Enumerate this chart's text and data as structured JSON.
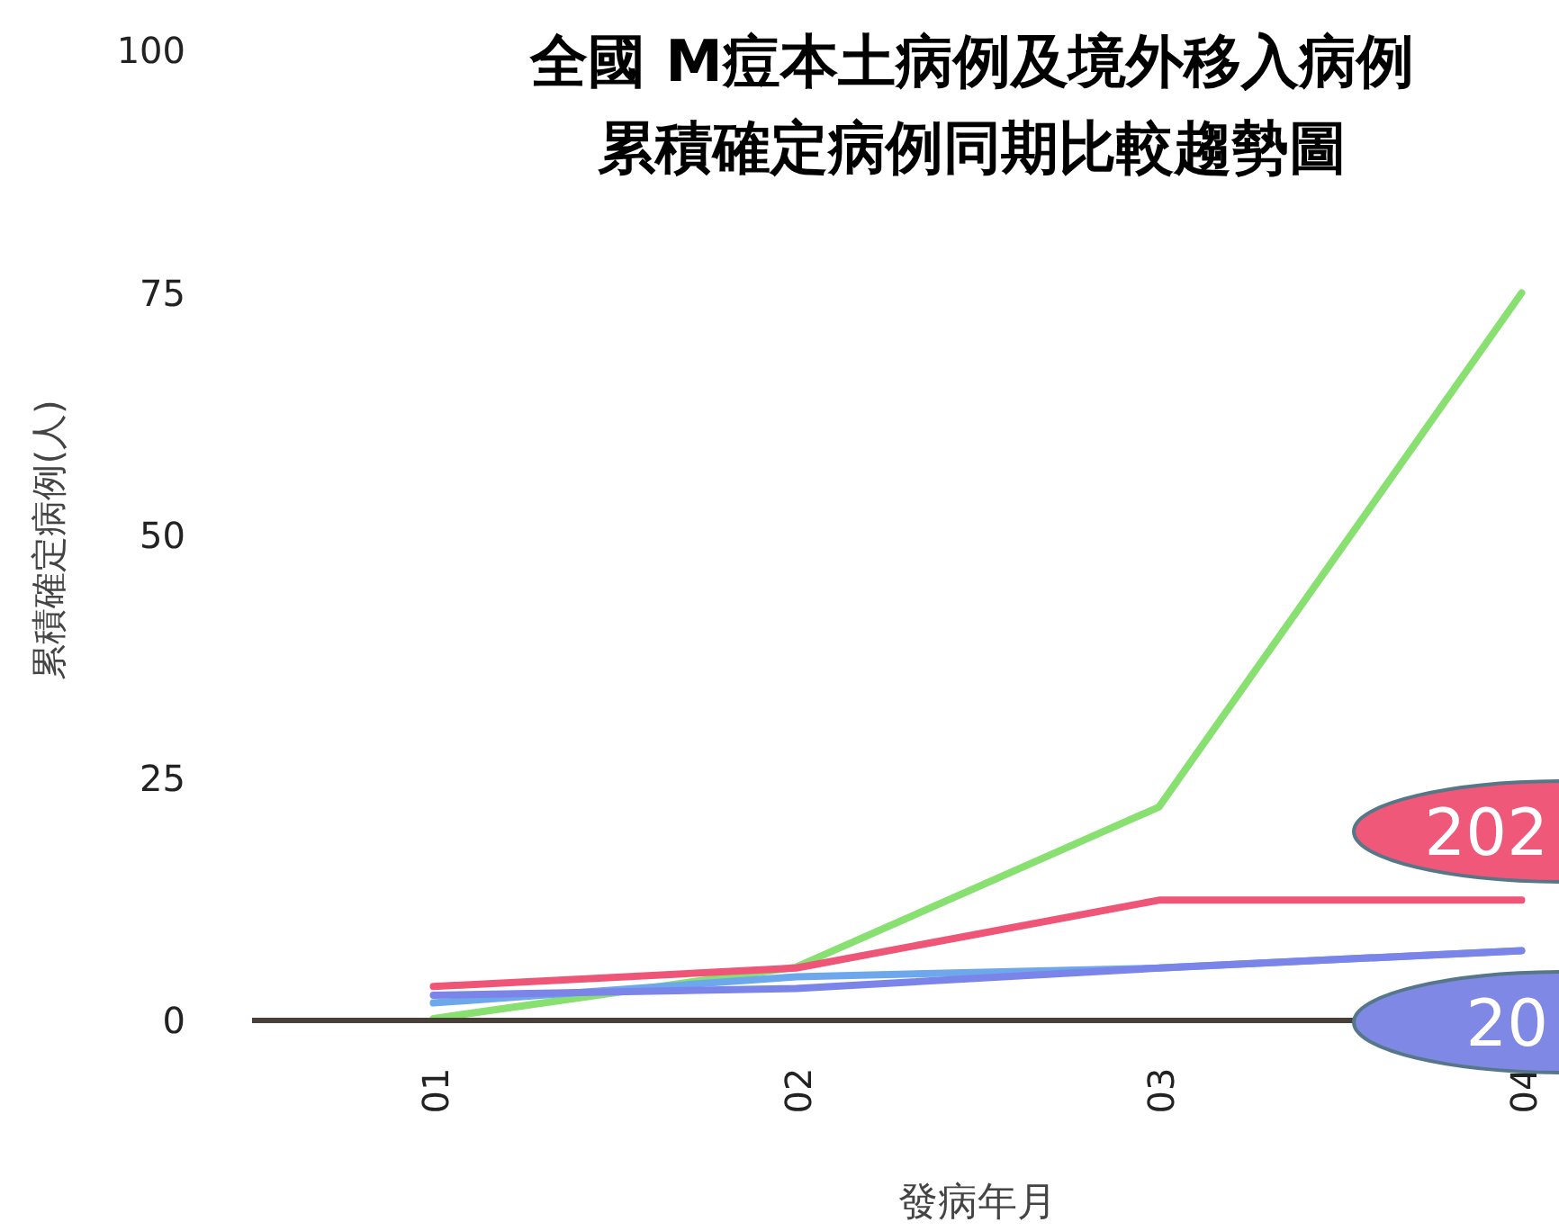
{
  "chart_data": {
    "type": "line",
    "title": "全國 M痘本土病例及境外移入病例",
    "subtitle": "累積確定病例同期比較趨勢圖",
    "xlabel": "發病年月",
    "ylabel": "累積確定病例(人)",
    "categories": [
      "01",
      "02",
      "03",
      "04"
    ],
    "ylim": [
      0,
      100
    ],
    "yticks": [
      0,
      25,
      50,
      75,
      100
    ],
    "grid": false,
    "marker": "none",
    "line_style": "solid",
    "series": [
      {
        "color": "#88e070",
        "values": [
          0.2,
          5.5,
          22,
          75
        ]
      },
      {
        "color": "#ee5577",
        "values": [
          3.5,
          5.4,
          12.4,
          12.4
        ]
      },
      {
        "color": "#6ea8ec",
        "values": [
          1.8,
          4.5,
          5.4,
          7.2
        ]
      },
      {
        "color": "#7b84e8",
        "values": [
          2.6,
          3.3,
          5.4,
          7.2
        ]
      }
    ],
    "annotations": [
      "202",
      "20"
    ]
  }
}
